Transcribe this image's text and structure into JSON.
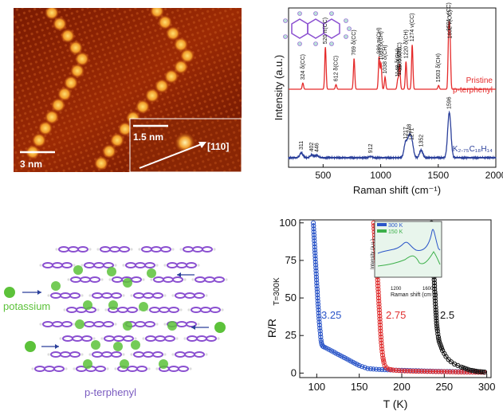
{
  "stm": {
    "scale_main": "3 nm",
    "scale_inset": "1.5 nm",
    "direction": "[110]"
  },
  "raman": {
    "ylabel": "Intensity (a.u.)",
    "xlabel": "Raman shift (cm⁻¹)",
    "label_pristine_1": "Pristine",
    "label_pristine_2": "p-terphenyl",
    "label_doped": "K₂.₇₅C₁₈H₁₄",
    "colors": {
      "pristine": "#e52b2b",
      "doped": "#2a3f9a"
    }
  },
  "structure": {
    "potassium_label": "potassium",
    "terphenyl_label": "p-terphenyl",
    "colors": {
      "molecule": "#8a4fd0",
      "potassium": "#5cc23a"
    }
  },
  "resistance": {
    "ylabel": "R/R",
    "ylabel_sub": "T=300K",
    "xlabel": "T (K)",
    "curve_labels": [
      "3.25",
      "2.75",
      "2.5"
    ],
    "inset_legend": [
      "300 K",
      "150 K"
    ],
    "inset_ylabel": "Intensity (a.u.)",
    "inset_xlabel": "Raman shift (cm⁻¹)",
    "inset_ticks": [
      "1200",
      "1600"
    ]
  },
  "chart_data": [
    {
      "type": "line",
      "title": "",
      "xlabel": "Raman shift (cm-1)",
      "ylabel": "Intensity (a.u.)",
      "xlim": [
        200,
        2000
      ],
      "xticks": [
        500,
        1000,
        1500,
        2000
      ],
      "series": [
        {
          "name": "Pristine p-terphenyl",
          "peaks": [
            {
              "x": 324,
              "label": "324 δ(CC)",
              "h": 0.08
            },
            {
              "x": 520,
              "label": "520 π(CC)",
              "h": 0.55
            },
            {
              "x": 612,
              "label": "612 δ(CC)",
              "h": 0.06
            },
            {
              "x": 769,
              "label": "769 δ(CC)",
              "h": 0.4
            },
            {
              "x": 986,
              "label": "986 π(CH)",
              "h": 0.42
            },
            {
              "x": 1003,
              "label": "1003 δ(CH)",
              "h": 0.34
            },
            {
              "x": 1038,
              "label": "1038 δ(CH)",
              "h": 0.16
            },
            {
              "x": 1148,
              "label": "1148 δ(CH)",
              "h": 0.12
            },
            {
              "x": 1162,
              "label": "1162 δ(CH)",
              "h": 0.14
            },
            {
              "x": 1165,
              "label": "1165 δ(CC)",
              "h": 0.2
            },
            {
              "x": 1220,
              "label": "1220 δ(CH)",
              "h": 0.36
            },
            {
              "x": 1274,
              "label": "1274 ν(CC)",
              "h": 0.58
            },
            {
              "x": 1503,
              "label": "1503 δ(CH)",
              "h": 0.05
            },
            {
              "x": 1591,
              "label": "1591 ν(CC)",
              "h": 0.72
            },
            {
              "x": 1602,
              "label": "1602 ν(CC)",
              "h": 0.62
            }
          ]
        },
        {
          "name": "K2.75C18H14",
          "peaks": [
            {
              "x": 311,
              "label": "311",
              "h": 0.1
            },
            {
              "x": 402,
              "label": "402",
              "h": 0.06
            },
            {
              "x": 446,
              "label": "446",
              "h": 0.05
            },
            {
              "x": 912,
              "label": "912",
              "h": 0.03
            },
            {
              "x": 1217,
              "label": "1217",
              "h": 0.32
            },
            {
              "x": 1248,
              "label": "1248",
              "h": 0.38
            },
            {
              "x": 1271,
              "label": "1271",
              "h": 0.3
            },
            {
              "x": 1352,
              "label": "1352",
              "h": 0.16
            },
            {
              "x": 1596,
              "label": "1596",
              "h": 0.95
            }
          ]
        }
      ]
    },
    {
      "type": "scatter",
      "title": "",
      "xlabel": "T (K)",
      "ylabel": "R/R T=300K",
      "xlim": [
        80,
        305
      ],
      "ylim": [
        -3,
        102
      ],
      "xticks": [
        100,
        150,
        200,
        250,
        300
      ],
      "yticks": [
        0,
        25,
        50,
        75,
        100
      ],
      "series": [
        {
          "name": "3.25",
          "color": "#2a55c8",
          "x": [
            96,
            97,
            98,
            99,
            100,
            101,
            102,
            103,
            104,
            105,
            106,
            107,
            108,
            110,
            115,
            120,
            125,
            130,
            135,
            140,
            145,
            150,
            160,
            170,
            180,
            190,
            200,
            220,
            240,
            260,
            280,
            300
          ],
          "y": [
            100,
            90,
            80,
            70,
            60,
            50,
            42,
            34,
            28,
            22,
            19,
            18,
            17.5,
            17,
            15.5,
            14,
            12.5,
            11,
            9.5,
            8,
            6.5,
            5,
            3,
            2.5,
            2.2,
            2,
            1.8,
            1.5,
            1.2,
            1,
            0.8,
            0.5
          ]
        },
        {
          "name": "2.75",
          "color": "#e03030",
          "x": [
            167,
            168,
            169,
            170,
            171,
            172,
            173,
            174,
            175,
            176,
            177,
            178,
            179,
            180,
            182,
            185,
            190,
            200,
            220,
            240,
            260,
            280,
            300
          ],
          "y": [
            100,
            92,
            84,
            76,
            68,
            58,
            48,
            38,
            28,
            20,
            14,
            10,
            7,
            5,
            3.5,
            2.5,
            2,
            1.5,
            1.2,
            1,
            0.8,
            0.6,
            0.5
          ]
        },
        {
          "name": "2.5",
          "color": "#111111",
          "x": [
            235,
            236,
            237,
            238,
            239,
            240,
            241,
            242,
            243,
            244,
            246,
            248,
            250,
            252,
            255,
            258,
            262,
            266,
            270,
            275,
            280,
            285,
            290,
            295,
            300
          ],
          "y": [
            100,
            88,
            76,
            64,
            52,
            42,
            33,
            28,
            24,
            21,
            18,
            15,
            13,
            11,
            9,
            7.5,
            6,
            5,
            4,
            3,
            2,
            1.5,
            1,
            0.8,
            0.5
          ]
        }
      ]
    }
  ]
}
